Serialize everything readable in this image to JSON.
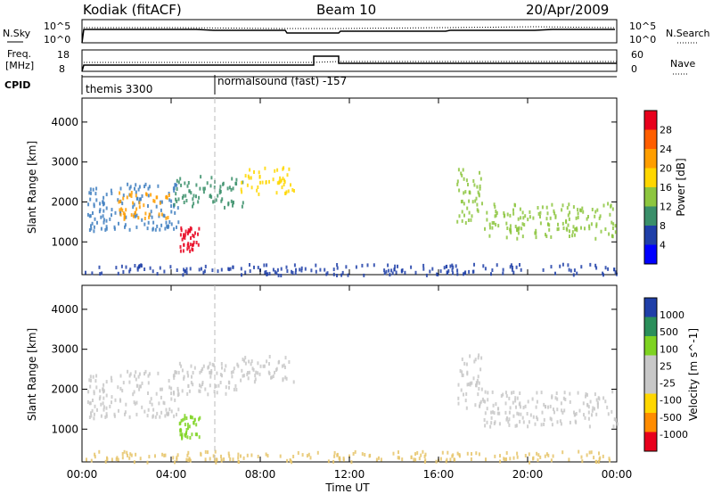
{
  "header": {
    "title": "Kodiak (fitACF)",
    "beam": "Beam 10",
    "date": "20/Apr/2009"
  },
  "top_panels": {
    "nsky_label": "N.Sky",
    "nsearch_label": "N.Search",
    "freq_label_line1": "Freq.",
    "freq_label_line2": "[MHz]",
    "nave_label": "Nave",
    "cpid_label": "CPID",
    "noise_ticks_left": [
      "10^5",
      "10^0"
    ],
    "noise_ticks_right": [
      "10^5",
      "10^0"
    ],
    "freq_ticks": [
      "18",
      "8"
    ],
    "nave_ticks": [
      "60",
      "0"
    ],
    "cpid_entries": [
      {
        "name": "themis 3300",
        "start_hour": 0
      },
      {
        "name": "normalsound (fast) -157",
        "start_hour": 6.0
      }
    ]
  },
  "chart_data": [
    {
      "type": "heatmap",
      "title": "",
      "xlabel": "Time UT",
      "ylabel": "Slant Range [km]",
      "x_ticks": [
        "00:00",
        "04:00",
        "08:00",
        "12:00",
        "16:00",
        "20:00",
        "00:00"
      ],
      "x_range_hours": [
        0,
        24
      ],
      "y_ticks": [
        1000,
        2000,
        3000,
        4000
      ],
      "ylim": [
        180,
        4600
      ],
      "colorbar": {
        "label": "Power [dB]",
        "ticks": [
          "28",
          "24",
          "20",
          "16",
          "12",
          "8",
          "4"
        ],
        "colors": [
          "#e8001c",
          "#ff5e00",
          "#ff9e00",
          "#ffd700",
          "#8dc63f",
          "#3a8f6a",
          "#1f3fa8",
          "#0000ff"
        ]
      },
      "regions": [
        {
          "t0": 0.2,
          "t1": 4.3,
          "r0": 1300,
          "r1": 2500,
          "color": "#3f7fbf"
        },
        {
          "t0": 1.5,
          "t1": 4.0,
          "r0": 1600,
          "r1": 2300,
          "color": "#ff9e00"
        },
        {
          "t0": 4.3,
          "t1": 5.3,
          "r0": 800,
          "r1": 1400,
          "color": "#e8001c"
        },
        {
          "t0": 4.0,
          "t1": 7.2,
          "r0": 1900,
          "r1": 2700,
          "color": "#3a8f6a"
        },
        {
          "t0": 7.0,
          "t1": 9.5,
          "r0": 2200,
          "r1": 2900,
          "color": "#ffd700"
        },
        {
          "t0": 16.8,
          "t1": 18.0,
          "r0": 1500,
          "r1": 2900,
          "color": "#8dc63f"
        },
        {
          "t0": 18.0,
          "t1": 24.0,
          "r0": 1100,
          "r1": 2000,
          "color": "#8dc63f"
        },
        {
          "t0": 0.0,
          "t1": 24.0,
          "r0": 200,
          "r1": 480,
          "color": "#1f3fa8"
        }
      ]
    },
    {
      "type": "heatmap",
      "title": "",
      "xlabel": "Time UT",
      "ylabel": "Slant Range [km]",
      "x_ticks": [
        "00:00",
        "04:00",
        "08:00",
        "12:00",
        "16:00",
        "20:00",
        "00:00"
      ],
      "x_range_hours": [
        0,
        24
      ],
      "y_ticks": [
        1000,
        2000,
        3000,
        4000
      ],
      "ylim": [
        180,
        4600
      ],
      "colorbar": {
        "label": "Velocity [m s^-1]",
        "ticks": [
          "1000",
          "500",
          "100",
          "25",
          "-25",
          "-100",
          "-500",
          "-1000"
        ],
        "colors": [
          "#1f3fa8",
          "#2a8f5a",
          "#7ed321",
          "#c8c8c8",
          "#c8c8c8",
          "#ffd700",
          "#ff8c00",
          "#e8001c"
        ]
      },
      "regions": [
        {
          "t0": 0.2,
          "t1": 4.3,
          "r0": 1300,
          "r1": 2500,
          "color": "#c8c8c8"
        },
        {
          "t0": 4.3,
          "t1": 5.3,
          "r0": 800,
          "r1": 1400,
          "color": "#7ed321"
        },
        {
          "t0": 4.0,
          "t1": 7.2,
          "r0": 1900,
          "r1": 2700,
          "color": "#c8c8c8"
        },
        {
          "t0": 7.0,
          "t1": 9.5,
          "r0": 2200,
          "r1": 2900,
          "color": "#c8c8c8"
        },
        {
          "t0": 16.8,
          "t1": 18.0,
          "r0": 1500,
          "r1": 2900,
          "color": "#c8c8c8"
        },
        {
          "t0": 18.0,
          "t1": 24.0,
          "r0": 1100,
          "r1": 2000,
          "color": "#c8c8c8"
        },
        {
          "t0": 0.0,
          "t1": 24.0,
          "r0": 200,
          "r1": 480,
          "color": "#e6c46a"
        }
      ]
    }
  ]
}
